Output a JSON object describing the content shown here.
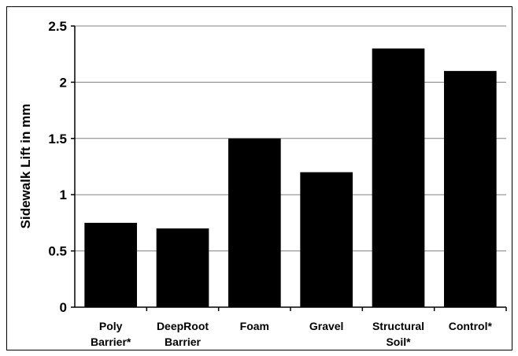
{
  "chart_data": {
    "type": "bar",
    "title": "",
    "xlabel": "",
    "ylabel": "Sidewalk Lift in mm",
    "categories": [
      [
        "Poly",
        "Barrier*"
      ],
      [
        "DeepRoot",
        "Barrier"
      ],
      [
        "Foam"
      ],
      [
        "Gravel"
      ],
      [
        "Structural",
        "Soil*"
      ],
      [
        "Control*"
      ]
    ],
    "values": [
      0.75,
      0.7,
      1.5,
      1.2,
      2.3,
      2.1
    ],
    "ylim": [
      0,
      2.5
    ],
    "yticks": [
      0,
      0.5,
      1,
      1.5,
      2,
      2.5
    ],
    "ytick_labels": [
      "0",
      "0.5",
      "1",
      "1.5",
      "2",
      "2.5"
    ],
    "grid": true,
    "bar_color": "#000000",
    "grid_color": "#808080"
  }
}
